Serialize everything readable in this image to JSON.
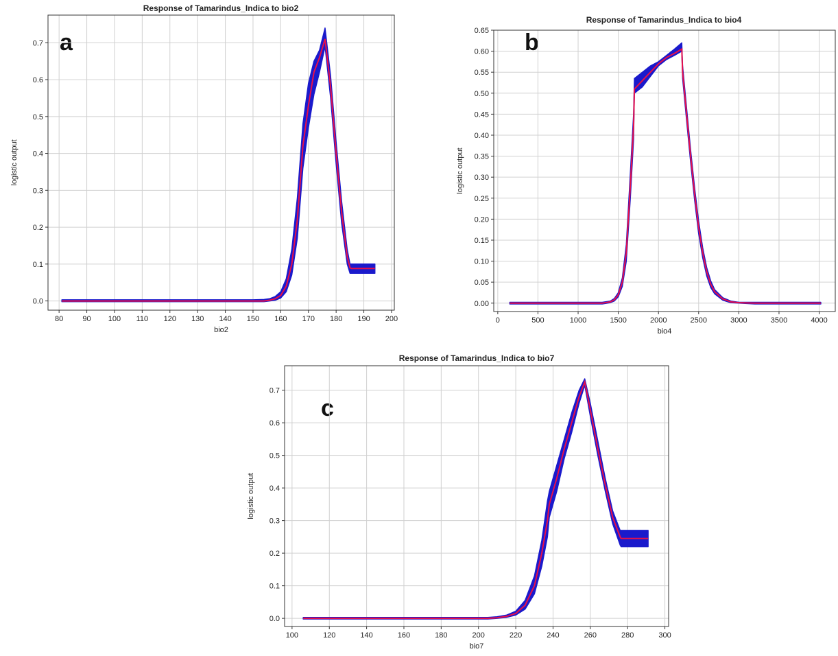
{
  "colors": {
    "band": "#1a1acc",
    "mean_line": "#e8104a",
    "grid": "#d0d0d0",
    "frame": "#333333"
  },
  "chart_data": [
    {
      "id": "a",
      "type": "line",
      "panel_letter": "a",
      "title": "Response of Tamarindus_Indica to bio2",
      "xlabel": "bio2",
      "ylabel": "logistic output",
      "xlim": [
        76,
        201
      ],
      "ylim": [
        -0.025,
        0.775
      ],
      "xticks": [
        80,
        90,
        100,
        110,
        120,
        130,
        140,
        150,
        160,
        170,
        180,
        190,
        200
      ],
      "yticks": [
        0.0,
        0.1,
        0.2,
        0.3,
        0.4,
        0.5,
        0.6,
        0.7
      ],
      "ytick_labels": [
        "0.0",
        "0.1",
        "0.2",
        "0.3",
        "0.4",
        "0.5",
        "0.6",
        "0.7"
      ],
      "grid": true,
      "series": [
        {
          "role": "mean",
          "x": [
            81,
            150,
            154,
            156,
            158,
            160,
            162,
            164,
            166,
            168,
            170,
            172,
            174,
            176,
            178,
            180,
            182,
            184,
            185,
            185.5,
            194
          ],
          "y": [
            0.0,
            0.0,
            0.0,
            0.002,
            0.006,
            0.015,
            0.04,
            0.1,
            0.22,
            0.42,
            0.53,
            0.62,
            0.66,
            0.71,
            0.58,
            0.4,
            0.24,
            0.12,
            0.09,
            0.088,
            0.088
          ]
        },
        {
          "role": "band_upper",
          "x": [
            81,
            150,
            154,
            156,
            158,
            160,
            162,
            164,
            166,
            168,
            170,
            172,
            174,
            176,
            178,
            180,
            182,
            184,
            185,
            185.5,
            194
          ],
          "y": [
            0.003,
            0.003,
            0.004,
            0.006,
            0.012,
            0.025,
            0.06,
            0.14,
            0.28,
            0.48,
            0.59,
            0.65,
            0.68,
            0.74,
            0.61,
            0.43,
            0.27,
            0.14,
            0.1,
            0.1,
            0.1
          ]
        },
        {
          "role": "band_lower",
          "x": [
            81,
            150,
            154,
            156,
            158,
            160,
            162,
            164,
            166,
            168,
            170,
            172,
            174,
            176,
            178,
            180,
            182,
            184,
            185,
            185.5,
            194
          ],
          "y": [
            -0.002,
            -0.002,
            -0.002,
            0.0,
            0.002,
            0.008,
            0.025,
            0.07,
            0.17,
            0.36,
            0.47,
            0.56,
            0.62,
            0.69,
            0.55,
            0.37,
            0.21,
            0.1,
            0.075,
            0.075,
            0.075
          ]
        }
      ]
    },
    {
      "id": "b",
      "type": "line",
      "panel_letter": "b",
      "title": "Response of Tamarindus_Indica to bio4",
      "xlabel": "bio4",
      "ylabel": "logistic output",
      "xlim": [
        -50,
        4200
      ],
      "ylim": [
        -0.02,
        0.65
      ],
      "xticks": [
        0,
        500,
        1000,
        1500,
        2000,
        2500,
        3000,
        3500,
        4000
      ],
      "yticks": [
        0.0,
        0.05,
        0.1,
        0.15,
        0.2,
        0.25,
        0.3,
        0.35,
        0.4,
        0.45,
        0.5,
        0.55,
        0.6,
        0.65
      ],
      "ytick_labels": [
        "0.00",
        "0.05",
        "0.10",
        "0.15",
        "0.20",
        "0.25",
        "0.30",
        "0.35",
        "0.40",
        "0.45",
        "0.50",
        "0.55",
        "0.60",
        "0.65"
      ],
      "grid": true,
      "series": [
        {
          "role": "mean",
          "x": [
            150,
            1300,
            1400,
            1450,
            1500,
            1550,
            1600,
            1650,
            1690,
            1700,
            1800,
            1900,
            2000,
            2100,
            2200,
            2290,
            2300,
            2350,
            2400,
            2450,
            2500,
            2550,
            2600,
            2650,
            2700,
            2800,
            2900,
            3000,
            3200,
            4020
          ],
          "y": [
            0.0,
            0.0,
            0.003,
            0.008,
            0.02,
            0.05,
            0.12,
            0.28,
            0.42,
            0.51,
            0.53,
            0.55,
            0.57,
            0.585,
            0.595,
            0.605,
            0.55,
            0.45,
            0.35,
            0.26,
            0.18,
            0.12,
            0.075,
            0.045,
            0.027,
            0.01,
            0.003,
            0.001,
            0.0,
            0.0
          ]
        },
        {
          "role": "band_upper",
          "x": [
            150,
            1300,
            1400,
            1450,
            1500,
            1550,
            1600,
            1650,
            1690,
            1700,
            1800,
            1900,
            2000,
            2100,
            2200,
            2290,
            2300,
            2350,
            2400,
            2450,
            2500,
            2550,
            2600,
            2650,
            2700,
            2800,
            2900,
            3000,
            3200,
            4020
          ],
          "y": [
            0.002,
            0.002,
            0.005,
            0.011,
            0.025,
            0.06,
            0.14,
            0.31,
            0.45,
            0.535,
            0.55,
            0.565,
            0.575,
            0.59,
            0.605,
            0.62,
            0.565,
            0.465,
            0.365,
            0.275,
            0.195,
            0.132,
            0.085,
            0.053,
            0.032,
            0.013,
            0.005,
            0.002,
            0.002,
            0.002
          ]
        },
        {
          "role": "band_lower",
          "x": [
            150,
            1300,
            1400,
            1450,
            1500,
            1550,
            1600,
            1650,
            1690,
            1700,
            1800,
            1900,
            2000,
            2100,
            2200,
            2290,
            2300,
            2350,
            2400,
            2450,
            2500,
            2550,
            2600,
            2650,
            2700,
            2800,
            2900,
            3000,
            3200,
            4020
          ],
          "y": [
            -0.002,
            -0.002,
            0.001,
            0.005,
            0.015,
            0.04,
            0.1,
            0.25,
            0.39,
            0.5,
            0.515,
            0.54,
            0.565,
            0.58,
            0.59,
            0.6,
            0.535,
            0.435,
            0.335,
            0.245,
            0.165,
            0.108,
            0.065,
            0.037,
            0.022,
            0.007,
            0.001,
            0.0,
            -0.002,
            -0.002
          ]
        }
      ]
    },
    {
      "id": "c",
      "type": "line",
      "panel_letter": "c",
      "title": "Response of Tamarindus_Indica to bio7",
      "xlabel": "bio7",
      "ylabel": "logistic output",
      "xlim": [
        96,
        302
      ],
      "ylim": [
        -0.025,
        0.775
      ],
      "xticks": [
        100,
        120,
        140,
        160,
        180,
        200,
        220,
        240,
        260,
        280,
        300
      ],
      "yticks": [
        0.0,
        0.1,
        0.2,
        0.3,
        0.4,
        0.5,
        0.6,
        0.7
      ],
      "ytick_labels": [
        "0.0",
        "0.1",
        "0.2",
        "0.3",
        "0.4",
        "0.5",
        "0.6",
        "0.7"
      ],
      "grid": true,
      "series": [
        {
          "role": "mean",
          "x": [
            106,
            205,
            210,
            215,
            220,
            225,
            230,
            234,
            237,
            238,
            242,
            246,
            250,
            254,
            257,
            260,
            264,
            268,
            272,
            276,
            276.5,
            291
          ],
          "y": [
            0.0,
            0.0,
            0.002,
            0.006,
            0.015,
            0.04,
            0.1,
            0.2,
            0.3,
            0.35,
            0.43,
            0.52,
            0.6,
            0.68,
            0.725,
            0.64,
            0.52,
            0.41,
            0.31,
            0.25,
            0.245,
            0.245
          ]
        },
        {
          "role": "band_upper",
          "x": [
            106,
            205,
            210,
            215,
            220,
            225,
            230,
            234,
            237,
            238,
            242,
            246,
            250,
            254,
            257,
            260,
            264,
            268,
            272,
            276,
            276.5,
            291
          ],
          "y": [
            0.003,
            0.003,
            0.005,
            0.01,
            0.022,
            0.055,
            0.13,
            0.24,
            0.36,
            0.39,
            0.47,
            0.55,
            0.63,
            0.7,
            0.735,
            0.66,
            0.545,
            0.43,
            0.33,
            0.27,
            0.27,
            0.27
          ]
        },
        {
          "role": "band_lower",
          "x": [
            106,
            205,
            210,
            215,
            220,
            225,
            230,
            234,
            237,
            238,
            242,
            246,
            250,
            254,
            257,
            260,
            264,
            268,
            272,
            276,
            276.5,
            291
          ],
          "y": [
            -0.002,
            -0.002,
            0.0,
            0.003,
            0.01,
            0.028,
            0.075,
            0.16,
            0.25,
            0.31,
            0.39,
            0.49,
            0.57,
            0.66,
            0.715,
            0.62,
            0.5,
            0.39,
            0.29,
            0.225,
            0.22,
            0.22
          ]
        }
      ]
    }
  ]
}
